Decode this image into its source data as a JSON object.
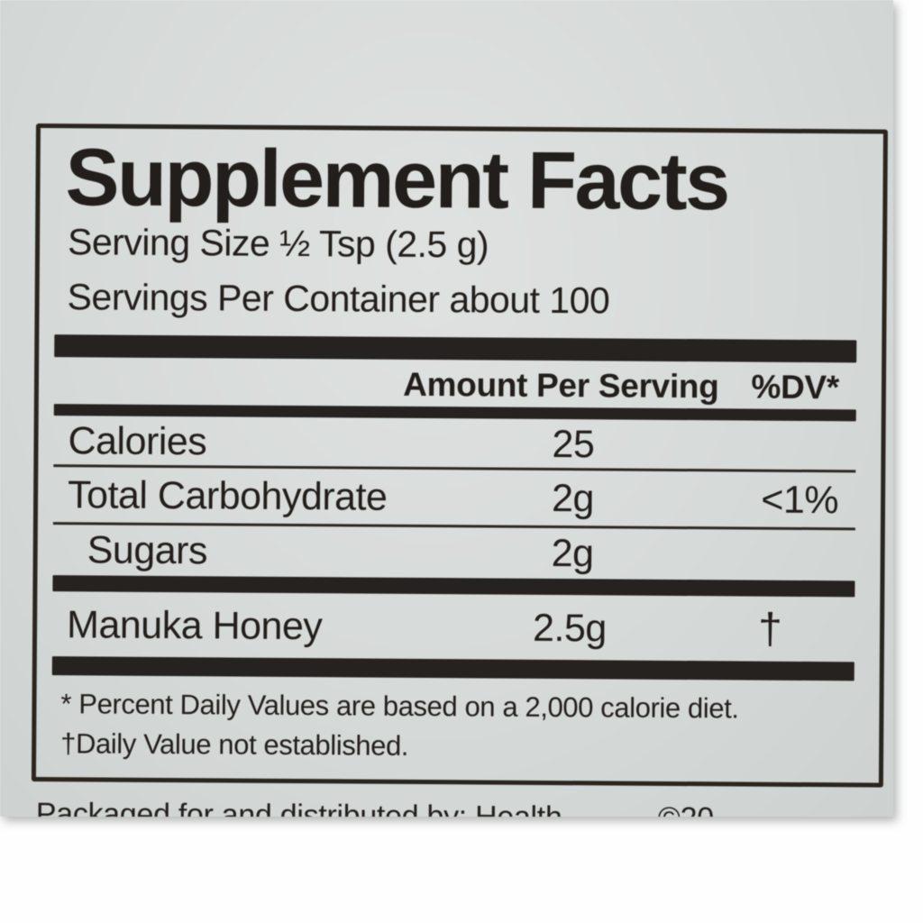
{
  "label": {
    "title": "Supplement Facts",
    "serving_size": "Serving Size ½ Tsp (2.5 g)",
    "servings_per_container": "Servings Per Container about 100",
    "header": {
      "amount_label": "Amount Per Serving",
      "dv_label": "%DV*"
    },
    "rows": [
      {
        "name": "Calories",
        "amount": "25",
        "dv": ""
      },
      {
        "name": "Total Carbohydrate",
        "amount": "2g",
        "dv": "<1%"
      },
      {
        "name": "Sugars",
        "amount": "2g",
        "dv": ""
      }
    ],
    "ingredient_row": {
      "name": "Manuka Honey",
      "amount": "2.5g",
      "dv": "†"
    },
    "footnotes": {
      "percent_daily_values": "* Percent Daily Values are based on a 2,000 calorie diet.",
      "daily_value_not_established": "†Daily Value not established."
    },
    "bottom_cutoff": {
      "left": "Packaged for and distributed by: Health",
      "right": "©20"
    },
    "colors": {
      "label_background": "#d6dad9",
      "ink": "#221e1b",
      "bar": "#262220",
      "page_background": "#fefefe"
    }
  }
}
